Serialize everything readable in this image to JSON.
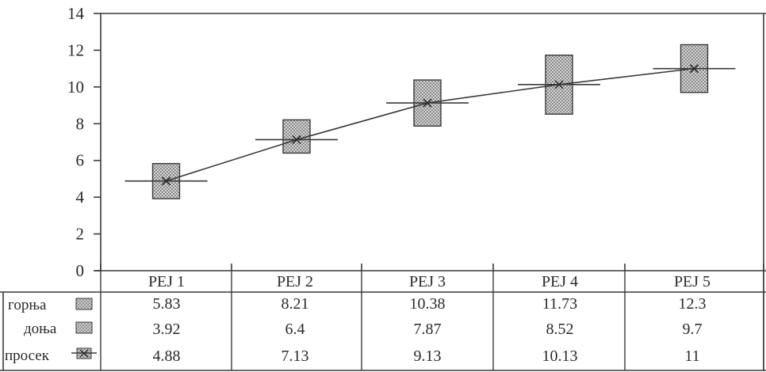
{
  "chart_data": {
    "type": "bar",
    "chart_subtype": "floating-range-with-average-line",
    "categories": [
      "PEJ 1",
      "PEJ 2",
      "PEJ 3",
      "PEJ 4",
      "PEJ 5"
    ],
    "series": [
      {
        "name": "горња",
        "values": [
          5.83,
          8.21,
          10.38,
          11.73,
          12.3
        ]
      },
      {
        "name": "доња",
        "values": [
          3.92,
          6.4,
          7.87,
          8.52,
          9.7
        ]
      },
      {
        "name": "просек",
        "values": [
          4.88,
          7.13,
          9.13,
          10.13,
          11
        ]
      }
    ],
    "y_ticks": [
      "0",
      "2",
      "4",
      "6",
      "8",
      "10",
      "12",
      "14"
    ],
    "ylim": [
      0,
      14
    ],
    "grid": false,
    "legend": "data-table-below",
    "table_values": [
      [
        "5.83",
        "8.21",
        "10.38",
        "11.73",
        "12.3"
      ],
      [
        "3.92",
        "6.4",
        "7.87",
        "8.52",
        "9.7"
      ],
      [
        "4.88",
        "7.13",
        "9.13",
        "10.13",
        "11"
      ]
    ],
    "colors": {
      "ink": "#3a3a3a",
      "box_fill": "#8c8c8c",
      "box_stripe": "#d9d9d9"
    }
  }
}
